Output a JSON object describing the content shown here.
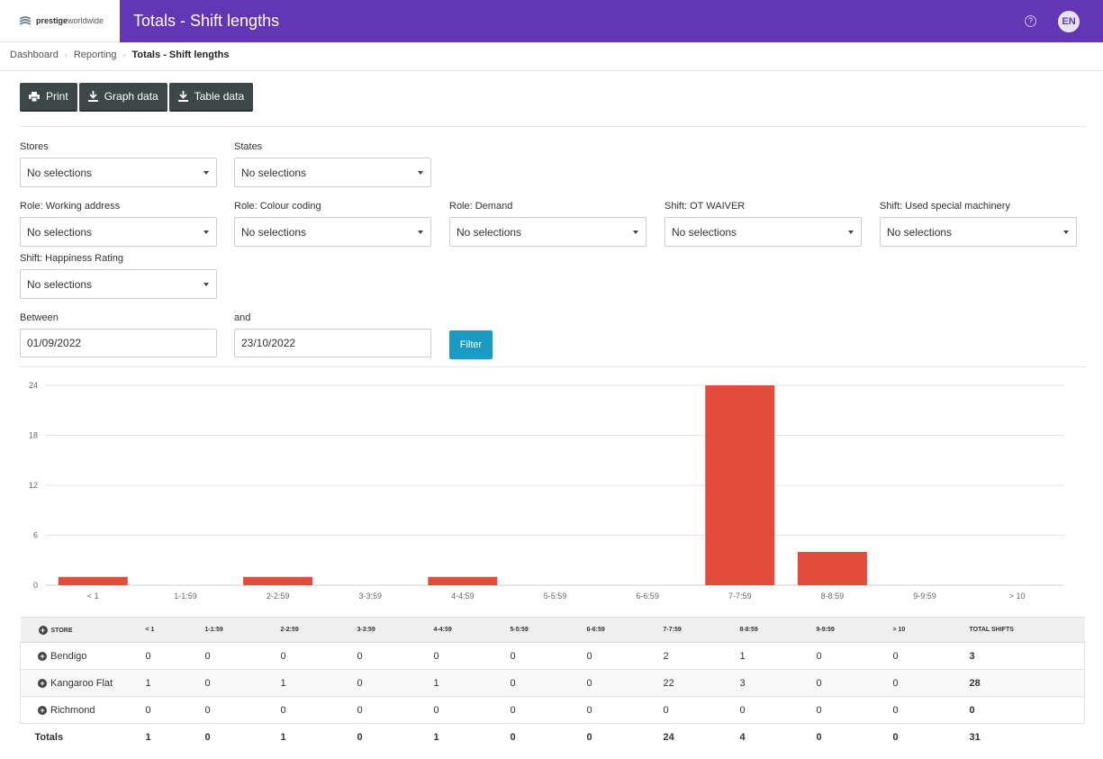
{
  "header": {
    "logo_bold": "prestige",
    "logo_light": "worldwide",
    "title": "Totals - Shift lengths",
    "help_icon": "?",
    "avatar_initials": "EN",
    "accent_color": "#6236b4"
  },
  "breadcrumb": [
    "Dashboard",
    "Reporting",
    "Totals - Shift lengths"
  ],
  "toolbar": {
    "print_label": "Print",
    "graph_label": "Graph data",
    "table_label": "Table data"
  },
  "filters": {
    "stores": {
      "label": "Stores",
      "value": "No selections"
    },
    "states": {
      "label": "States",
      "value": "No selections"
    },
    "role_working_address": {
      "label": "Role: Working address",
      "value": "No selections"
    },
    "role_colour_coding": {
      "label": "Role: Colour coding",
      "value": "No selections"
    },
    "role_demand": {
      "label": "Role: Demand",
      "value": "No selections"
    },
    "shift_ot_waiver": {
      "label": "Shift: OT WAIVER",
      "value": "No selections"
    },
    "shift_special_machinery": {
      "label": "Shift: Used special machinery",
      "value": "No selections"
    },
    "shift_happiness": {
      "label": "Shift: Happiness Rating",
      "value": "No selections"
    },
    "between": {
      "label": "Between",
      "value": "01/09/2022"
    },
    "and": {
      "label": "and",
      "value": "23/10/2022"
    },
    "filter_button": "Filter",
    "filter_color": "#1a9bc3"
  },
  "chart_data": {
    "type": "bar",
    "categories": [
      "< 1",
      "1-1:59",
      "2-2:59",
      "3-3:59",
      "4-4:59",
      "5-5:59",
      "6-6:59",
      "7-7:59",
      "8-8:59",
      "9-9:59",
      "> 10"
    ],
    "values": [
      1,
      0,
      1,
      0,
      1,
      0,
      0,
      24,
      4,
      0,
      0
    ],
    "yticks": [
      0,
      6,
      12,
      18,
      24
    ],
    "ylim": [
      0,
      24
    ],
    "bar_color": "#e34b3c",
    "grid": true
  },
  "table": {
    "store_header": "STORE",
    "total_header": "TOTAL SHIFTS",
    "columns": [
      "< 1",
      "1-1:59",
      "2-2:59",
      "3-3:59",
      "4-4:59",
      "5-5:59",
      "6-6:59",
      "7-7:59",
      "8-8:59",
      "9-9:59",
      "> 10"
    ],
    "rows": [
      {
        "store": "Bendigo",
        "values": [
          "0",
          "0",
          "0",
          "0",
          "0",
          "0",
          "0",
          "2",
          "1",
          "0",
          "0"
        ],
        "total": "3"
      },
      {
        "store": "Kangaroo Flat",
        "values": [
          "1",
          "0",
          "1",
          "0",
          "1",
          "0",
          "0",
          "22",
          "3",
          "0",
          "0"
        ],
        "total": "28"
      },
      {
        "store": "Richmond",
        "values": [
          "0",
          "0",
          "0",
          "0",
          "0",
          "0",
          "0",
          "0",
          "0",
          "0",
          "0"
        ],
        "total": "0"
      }
    ],
    "totals_label": "Totals",
    "totals": [
      "1",
      "0",
      "1",
      "0",
      "1",
      "0",
      "0",
      "24",
      "4",
      "0",
      "0"
    ],
    "grand_total": "31"
  }
}
